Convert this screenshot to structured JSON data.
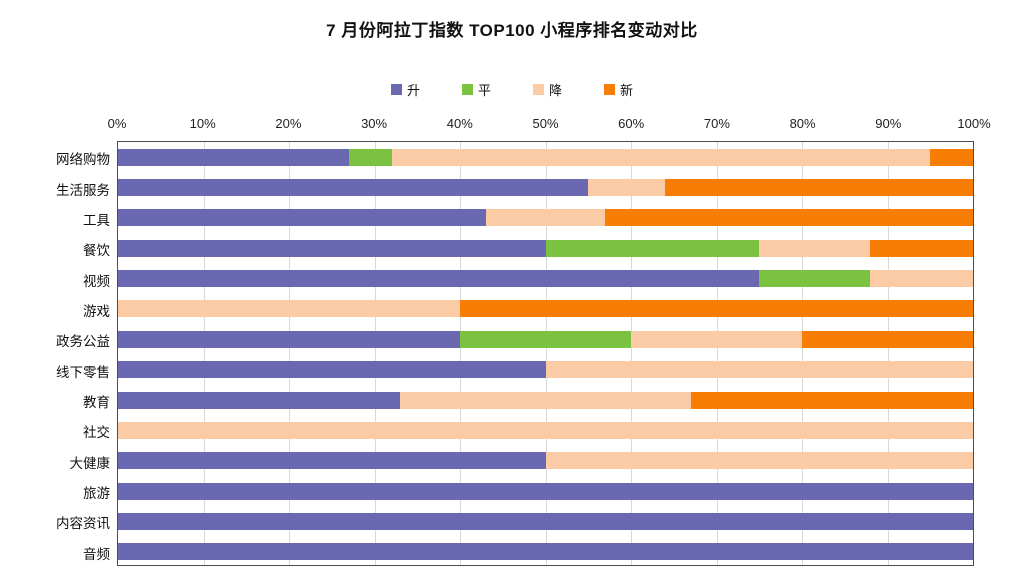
{
  "title": "7 月份阿拉丁指数 TOP100 小程序排名变动对比",
  "colors": {
    "rise": "#6a68b1",
    "flat": "#7cc241",
    "fall": "#fbcba6",
    "new": "#f77d05",
    "grid": "#d9d9d9",
    "plot_border": "#4d4d4d"
  },
  "chart_data": {
    "type": "bar",
    "orientation": "horizontal",
    "stacked": true,
    "unit": "percent",
    "title": "7 月份阿拉丁指数 TOP100 小程序排名变动对比",
    "xlim": [
      0,
      100
    ],
    "x_ticks": [
      "0%",
      "10%",
      "20%",
      "30%",
      "40%",
      "50%",
      "60%",
      "70%",
      "80%",
      "90%",
      "100%"
    ],
    "grid": true,
    "legend_position": "top",
    "categories": [
      "网络购物",
      "生活服务",
      "工具",
      "餐饮",
      "视频",
      "游戏",
      "政务公益",
      "线下零售",
      "教育",
      "社交",
      "大健康",
      "旅游",
      "内容资讯",
      "音频"
    ],
    "series": [
      {
        "name": "升",
        "color": "#6a68b1",
        "values": [
          27,
          55,
          43,
          50,
          75,
          0,
          40,
          50,
          33,
          0,
          50,
          100,
          100,
          100
        ]
      },
      {
        "name": "平",
        "color": "#7cc241",
        "values": [
          5,
          0,
          0,
          25,
          13,
          0,
          20,
          0,
          0,
          0,
          0,
          0,
          0,
          0
        ]
      },
      {
        "name": "降",
        "color": "#fbcba6",
        "values": [
          63,
          9,
          14,
          13,
          12,
          40,
          20,
          50,
          34,
          100,
          50,
          0,
          0,
          0
        ]
      },
      {
        "name": "新",
        "color": "#f77d05",
        "values": [
          5,
          36,
          43,
          12,
          0,
          60,
          20,
          0,
          33,
          0,
          0,
          0,
          0,
          0
        ]
      }
    ]
  }
}
